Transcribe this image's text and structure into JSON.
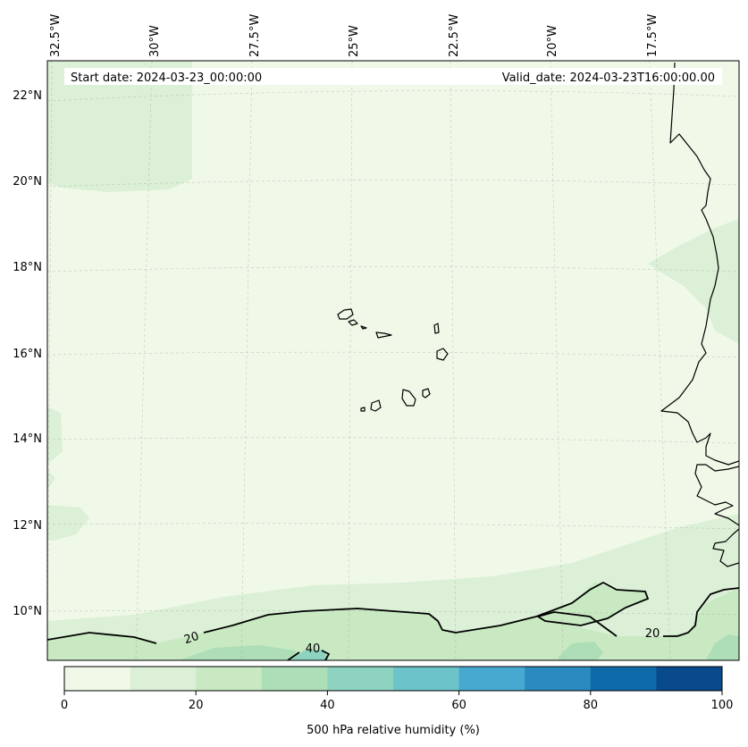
{
  "header": {
    "start_date": "Start date: 2024-03-23_00:00:00",
    "valid_date": "Valid_date: 2024-03-23T16:00:00.00"
  },
  "longitude_labels": [
    "32.5°W",
    "30°W",
    "27.5°W",
    "25°W",
    "22.5°W",
    "20°W",
    "17.5°W"
  ],
  "latitude_labels": [
    "22°N",
    "20°N",
    "18°N",
    "16°N",
    "14°N",
    "12°N",
    "10°N"
  ],
  "contour_labels": [
    "20",
    "40",
    "20"
  ],
  "colorbar": {
    "label": "500 hPa relative humidity (%)",
    "ticks": [
      "0",
      "20",
      "40",
      "60",
      "80",
      "100"
    ],
    "colors": [
      "#f0f9e8",
      "#dbf0d6",
      "#c8e9c1",
      "#addeb7",
      "#8dd3c0",
      "#6cc3c9",
      "#46a9d0",
      "#2a8bbf",
      "#0f6aa9",
      "#084a8c"
    ]
  },
  "colors": {
    "base_fill": "#f0f9e8",
    "band_10_20": "#dbf0d6",
    "band_20_30": "#c8e9c1",
    "band_30_40": "#addeb7",
    "band_40_50": "#8dd3c0"
  }
}
